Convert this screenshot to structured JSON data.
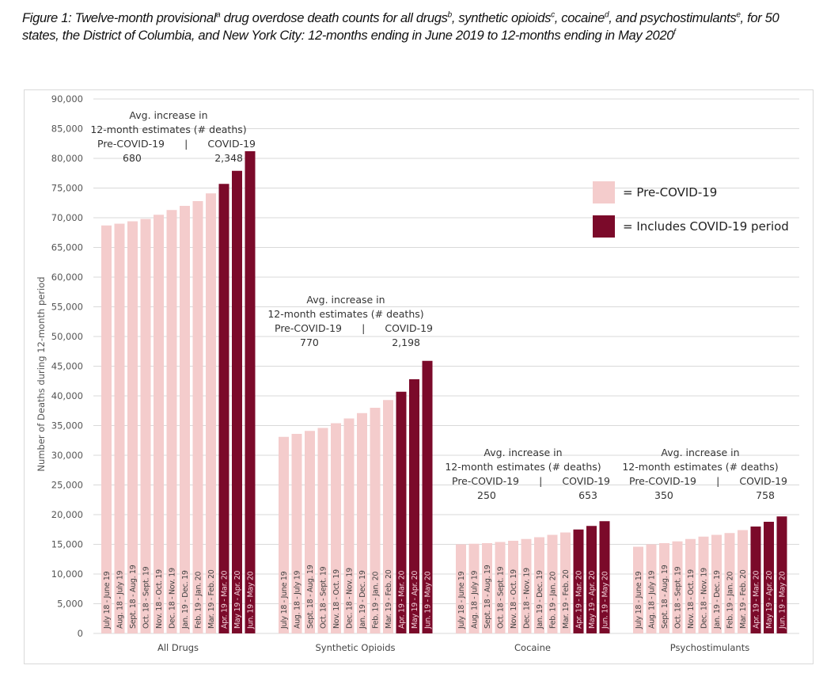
{
  "title": {
    "segments": [
      {
        "t": "Figure 1: Twelve-month provisional"
      },
      {
        "sup": "a"
      },
      {
        "t": " drug overdose death counts for all drugs"
      },
      {
        "sup": "b"
      },
      {
        "t": ", synthetic opioids"
      },
      {
        "sup": "c"
      },
      {
        "t": ", cocaine"
      },
      {
        "sup": "d"
      },
      {
        "t": ", and psychostimulants"
      },
      {
        "sup": "e"
      },
      {
        "t": ", for 50 states, the District of Columbia, and New York City: 12-months ending in June 2019 to 12-months ending in May 2020"
      },
      {
        "sup": "f"
      }
    ]
  },
  "legend": {
    "pre": {
      "label": "= Pre-COVID-19",
      "color": "#f4cccc"
    },
    "covid": {
      "label": "= Includes COVID-19 period",
      "color": "#7b0a2a"
    }
  },
  "annotations": [
    {
      "line1": "Avg. increase in",
      "line2": "12-month estimates (# deaths)",
      "pre_label": "Pre-COVID-19",
      "sep": "|",
      "covid_label": "COVID-19",
      "pre_value": "680",
      "covid_value": "2,348"
    },
    {
      "line1": "Avg. increase in",
      "line2": "12-month estimates (# deaths)",
      "pre_label": "Pre-COVID-19",
      "sep": "|",
      "covid_label": "COVID-19",
      "pre_value": "770",
      "covid_value": "2,198"
    },
    {
      "line1": "Avg. increase in",
      "line2": "12-month estimates (# deaths)",
      "pre_label": "Pre-COVID-19",
      "sep": "|",
      "covid_label": "COVID-19",
      "pre_value": "250",
      "covid_value": "653"
    },
    {
      "line1": "Avg. increase in",
      "line2": "12-month estimates (# deaths)",
      "pre_label": "Pre-COVID-19",
      "sep": "|",
      "covid_label": "COVID-19",
      "pre_value": "350",
      "covid_value": "758"
    }
  ],
  "chart_data": {
    "type": "bar",
    "title": "Figure 1: Twelve-month provisional drug overdose death counts",
    "ylabel": "Number of Deaths during 12-month period",
    "xlabel": "",
    "ylim": [
      0,
      90000
    ],
    "ytick_step": 5000,
    "grid": true,
    "legend_position": "top-right",
    "groups": [
      "All Drugs",
      "Synthetic Opioids",
      "Cocaine",
      "Psychostimulants"
    ],
    "periods": [
      "July 18 - June 19",
      "Aug. 18 - July 19",
      "Sept. 18 - Aug. 19",
      "Oct. 18 - Sept. 19",
      "Nov. 18 - Oct. 19",
      "Dec. 18 - Nov. 19",
      "Jan. 19 - Dec. 19",
      "Feb. 19 - Jan. 20",
      "Mar. 19 - Feb. 20",
      "Apr. 19 - Mar. 20",
      "May 19 - Apr. 20",
      "Jun. 19 - May 20"
    ],
    "covid_flags": [
      false,
      false,
      false,
      false,
      false,
      false,
      false,
      false,
      false,
      true,
      true,
      true
    ],
    "series": [
      {
        "name": "All Drugs",
        "values": [
          68700,
          69000,
          69400,
          69800,
          70500,
          71300,
          72000,
          72800,
          74100,
          75700,
          77900,
          81200
        ]
      },
      {
        "name": "Synthetic Opioids",
        "values": [
          33100,
          33600,
          34100,
          34600,
          35400,
          36200,
          37100,
          38000,
          39300,
          40700,
          42800,
          45900
        ]
      },
      {
        "name": "Cocaine",
        "values": [
          15000,
          15100,
          15200,
          15400,
          15600,
          15900,
          16200,
          16600,
          17000,
          17500,
          18100,
          18900
        ]
      },
      {
        "name": "Psychostimulants",
        "values": [
          14600,
          15000,
          15200,
          15500,
          15900,
          16300,
          16600,
          16900,
          17400,
          18000,
          18800,
          19700
        ]
      }
    ]
  }
}
